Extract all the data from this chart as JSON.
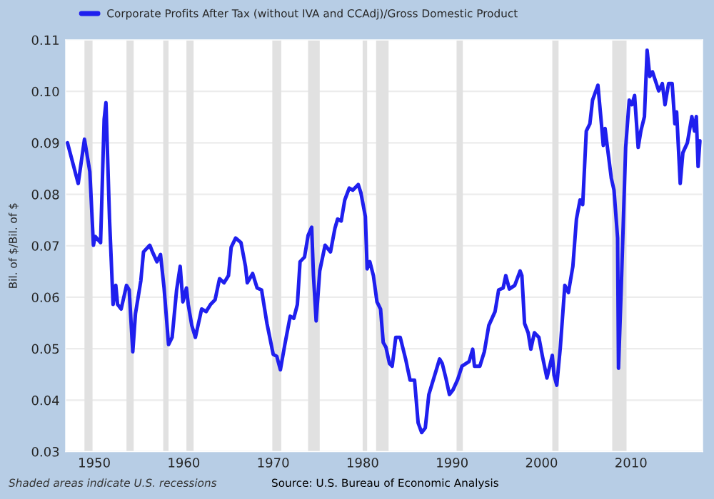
{
  "chart_data": {
    "type": "line",
    "ylabel": "Bil. of $/Bil. of $",
    "annotations": [
      "Shaded areas indicate U.S. recessions",
      "Source: U.S. Bureau of Economic Analysis"
    ],
    "xlim": [
      1946.8,
      2018.0
    ],
    "xticks": [
      1950,
      1960,
      1970,
      1980,
      1990,
      2000,
      2010
    ],
    "ylim": [
      0.03,
      0.11
    ],
    "yticks": [
      0.03,
      0.04,
      0.05,
      0.06,
      0.07,
      0.08,
      0.09,
      {
        "value": 0.1,
        "label": "0.10"
      },
      0.11
    ],
    "grid": "y",
    "legend": "top left",
    "line_style": "solid",
    "marker": "none",
    "bands": [
      {
        "axis": "x",
        "from": 1948.9,
        "to": 1949.8,
        "color": "#e1e1e1"
      },
      {
        "axis": "x",
        "from": 1953.6,
        "to": 1954.4,
        "color": "#e1e1e1"
      },
      {
        "axis": "x",
        "from": 1957.7,
        "to": 1958.3,
        "color": "#e1e1e1"
      },
      {
        "axis": "x",
        "from": 1960.3,
        "to": 1961.1,
        "color": "#e1e1e1"
      },
      {
        "axis": "x",
        "from": 1969.9,
        "to": 1970.9,
        "color": "#e1e1e1"
      },
      {
        "axis": "x",
        "from": 1973.9,
        "to": 1975.2,
        "color": "#e1e1e1"
      },
      {
        "axis": "x",
        "from": 1980.0,
        "to": 1980.5,
        "color": "#e1e1e1"
      },
      {
        "axis": "x",
        "from": 1981.5,
        "to": 1982.9,
        "color": "#e1e1e1"
      },
      {
        "axis": "x",
        "from": 1990.5,
        "to": 1991.2,
        "color": "#e1e1e1"
      },
      {
        "axis": "x",
        "from": 2001.2,
        "to": 2001.9,
        "color": "#e1e1e1"
      },
      {
        "axis": "x",
        "from": 2007.9,
        "to": 2009.5,
        "color": "#e1e1e1"
      }
    ],
    "series": [
      {
        "name": "Corporate Profits After Tax (without IVA and CCAdj)/Gross Domestic Product",
        "color": "#1f1fee",
        "x": [
          1947.0,
          1948.2,
          1948.9,
          1949.5,
          1949.9,
          1950.1,
          1950.7,
          1951.1,
          1951.3,
          1951.7,
          1952.1,
          1952.4,
          1952.6,
          1953.0,
          1953.6,
          1953.9,
          1954.3,
          1954.6,
          1955.2,
          1955.5,
          1956.2,
          1956.5,
          1957.0,
          1957.4,
          1957.8,
          1958.3,
          1958.7,
          1959.2,
          1959.6,
          1959.9,
          1960.3,
          1960.5,
          1960.9,
          1961.3,
          1962.0,
          1962.5,
          1963.0,
          1963.5,
          1964.0,
          1964.5,
          1965.0,
          1965.3,
          1965.8,
          1966.4,
          1966.9,
          1967.1,
          1967.7,
          1968.2,
          1968.7,
          1969.3,
          1970.0,
          1970.4,
          1970.8,
          1971.3,
          1971.9,
          1972.3,
          1972.7,
          1973.0,
          1973.5,
          1973.9,
          1974.3,
          1974.5,
          1974.8,
          1975.2,
          1975.8,
          1976.4,
          1976.9,
          1977.2,
          1977.6,
          1978.0,
          1978.5,
          1978.9,
          1979.5,
          1979.8,
          1980.3,
          1980.5,
          1980.8,
          1981.2,
          1981.6,
          1982.0,
          1982.3,
          1982.6,
          1983.0,
          1983.3,
          1983.7,
          1984.2,
          1984.8,
          1985.3,
          1985.8,
          1986.2,
          1986.6,
          1987.0,
          1987.4,
          1987.8,
          1988.2,
          1988.6,
          1988.9,
          1989.3,
          1989.7,
          1990.1,
          1990.6,
          1991.1,
          1991.9,
          1992.3,
          1992.5,
          1993.1,
          1993.6,
          1994.1,
          1994.8,
          1995.2,
          1995.7,
          1996.0,
          1996.4,
          1997.0,
          1997.6,
          1997.8,
          1998.1,
          1998.5,
          1998.8,
          1999.2,
          1999.7,
          2000.1,
          2000.6,
          2001.2,
          2001.4,
          2001.7,
          2002.1,
          2002.6,
          2003.0,
          2003.5,
          2003.9,
          2004.3,
          2004.6,
          2005.0,
          2005.4,
          2005.7,
          2006.3,
          2006.6,
          2006.9,
          2007.1,
          2007.4,
          2007.8,
          2008.1,
          2008.5,
          2008.6,
          2008.9,
          2009.4,
          2009.8,
          2010.1,
          2010.4,
          2010.8,
          2011.1,
          2011.5,
          2011.8,
          2012.1,
          2012.4,
          2013.1,
          2013.5,
          2013.8,
          2014.2,
          2014.6,
          2014.9,
          2015.1,
          2015.5,
          2015.8,
          2016.3,
          2016.8,
          2017.1,
          2017.3,
          2017.5,
          2017.7
        ],
        "values": [
          0.09,
          0.0821,
          0.0907,
          0.0844,
          0.0701,
          0.0718,
          0.0706,
          0.0946,
          0.0978,
          0.0752,
          0.0586,
          0.0623,
          0.0586,
          0.0577,
          0.0623,
          0.0614,
          0.0494,
          0.0568,
          0.0632,
          0.0688,
          0.0701,
          0.0688,
          0.0669,
          0.0683,
          0.0618,
          0.0508,
          0.0522,
          0.0614,
          0.066,
          0.0591,
          0.0618,
          0.0586,
          0.0545,
          0.0522,
          0.0577,
          0.0572,
          0.0586,
          0.0595,
          0.0636,
          0.0628,
          0.0642,
          0.0697,
          0.0715,
          0.0706,
          0.066,
          0.0628,
          0.0646,
          0.0618,
          0.0614,
          0.0549,
          0.0489,
          0.0485,
          0.0459,
          0.0508,
          0.0563,
          0.0559,
          0.0586,
          0.0669,
          0.0678,
          0.072,
          0.0736,
          0.0642,
          0.0554,
          0.0651,
          0.0701,
          0.0688,
          0.0734,
          0.0752,
          0.0748,
          0.0789,
          0.0812,
          0.0808,
          0.0819,
          0.0803,
          0.0757,
          0.0655,
          0.0669,
          0.0642,
          0.0591,
          0.0577,
          0.0512,
          0.0503,
          0.0471,
          0.0466,
          0.0522,
          0.0522,
          0.048,
          0.0439,
          0.0439,
          0.0356,
          0.0337,
          0.0346,
          0.0411,
          0.0434,
          0.0457,
          0.048,
          0.0471,
          0.0443,
          0.0411,
          0.042,
          0.0439,
          0.0466,
          0.0475,
          0.0499,
          0.0466,
          0.0466,
          0.0494,
          0.0545,
          0.0572,
          0.0614,
          0.0618,
          0.0642,
          0.0616,
          0.0623,
          0.0651,
          0.0642,
          0.0549,
          0.0531,
          0.0499,
          0.0531,
          0.0522,
          0.0485,
          0.0443,
          0.0487,
          0.0448,
          0.0429,
          0.0503,
          0.0623,
          0.0609,
          0.066,
          0.0752,
          0.0789,
          0.078,
          0.0923,
          0.0937,
          0.0983,
          0.1012,
          0.0955,
          0.0895,
          0.0928,
          0.0886,
          0.0831,
          0.0808,
          0.0715,
          0.0462,
          0.0614,
          0.0891,
          0.0983,
          0.0974,
          0.0992,
          0.0891,
          0.0923,
          0.0951,
          0.108,
          0.1029,
          0.1038,
          0.1001,
          0.1015,
          0.0974,
          0.1015,
          0.1015,
          0.0937,
          0.096,
          0.0821,
          0.0881,
          0.09,
          0.0951,
          0.0923,
          0.0951,
          0.0854,
          0.0904
        ]
      }
    ]
  }
}
